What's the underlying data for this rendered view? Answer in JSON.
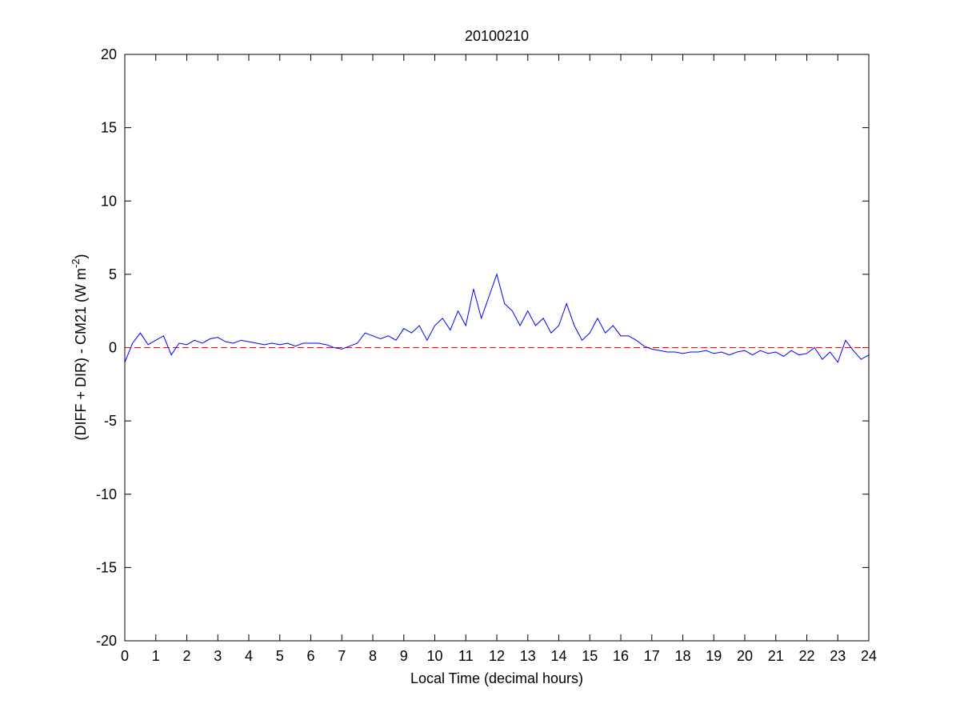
{
  "chart_data": {
    "type": "line",
    "title": "20100210",
    "xlabel": "Local Time (decimal hours)",
    "ylabel": "(DIFF + DIR) - CM21 (W m",
    "ylabel_superscript": "-2",
    "ylabel_end": ")",
    "x": [
      0,
      0.25,
      0.5,
      0.75,
      1,
      1.25,
      1.5,
      1.75,
      2,
      2.25,
      2.5,
      2.75,
      3,
      3.25,
      3.5,
      3.75,
      4,
      4.25,
      4.5,
      4.75,
      5,
      5.25,
      5.5,
      5.75,
      6,
      6.25,
      6.5,
      6.75,
      7,
      7.25,
      7.5,
      7.75,
      8,
      8.25,
      8.5,
      8.75,
      9,
      9.25,
      9.5,
      9.75,
      10,
      10.25,
      10.5,
      10.75,
      11,
      11.25,
      11.5,
      11.75,
      12,
      12.25,
      12.5,
      12.75,
      13,
      13.25,
      13.5,
      13.75,
      14,
      14.25,
      14.5,
      14.75,
      15,
      15.25,
      15.5,
      15.75,
      16,
      16.25,
      16.5,
      16.75,
      17,
      17.25,
      17.5,
      17.75,
      18,
      18.25,
      18.5,
      18.75,
      19,
      19.25,
      19.5,
      19.75,
      20,
      20.25,
      20.5,
      20.75,
      21,
      21.25,
      21.5,
      21.75,
      22,
      22.25,
      22.5,
      22.75,
      23,
      23.25,
      23.5,
      23.75,
      24
    ],
    "series": [
      {
        "color": "#0000ff",
        "values": [
          -1.0,
          0.3,
          1.0,
          0.2,
          0.5,
          0.8,
          -0.5,
          0.3,
          0.2,
          0.5,
          0.3,
          0.6,
          0.7,
          0.4,
          0.3,
          0.5,
          0.4,
          0.3,
          0.2,
          0.3,
          0.2,
          0.3,
          0.1,
          0.3,
          0.3,
          0.3,
          0.2,
          0.0,
          -0.1,
          0.1,
          0.3,
          1.0,
          0.8,
          0.6,
          0.8,
          0.5,
          1.3,
          1.0,
          1.5,
          0.5,
          1.5,
          2.0,
          1.2,
          2.5,
          1.5,
          4.0,
          2.0,
          3.5,
          5.0,
          3.0,
          2.5,
          1.5,
          2.5,
          1.5,
          2.0,
          1.0,
          1.5,
          3.0,
          1.5,
          0.5,
          1.0,
          2.0,
          1.0,
          1.5,
          0.8,
          0.8,
          0.5,
          0.1,
          -0.1,
          -0.2,
          -0.3,
          -0.3,
          -0.4,
          -0.3,
          -0.3,
          -0.2,
          -0.4,
          -0.3,
          -0.5,
          -0.3,
          -0.2,
          -0.5,
          -0.2,
          -0.4,
          -0.3,
          -0.6,
          -0.2,
          -0.5,
          -0.4,
          0.0,
          -0.8,
          -0.3,
          -1.0,
          0.5,
          -0.2,
          -0.8,
          -0.5
        ]
      }
    ],
    "reference_line": {
      "value": 0,
      "color": "#ff0000"
    },
    "xlim": [
      0,
      24
    ],
    "xticks": [
      0,
      1,
      2,
      3,
      4,
      5,
      6,
      7,
      8,
      9,
      10,
      11,
      12,
      13,
      14,
      15,
      16,
      17,
      18,
      19,
      20,
      21,
      22,
      23,
      24
    ],
    "ylim": [
      -20,
      20
    ],
    "yticks": [
      -20,
      -15,
      -10,
      -5,
      0,
      5,
      10,
      15,
      20
    ]
  }
}
